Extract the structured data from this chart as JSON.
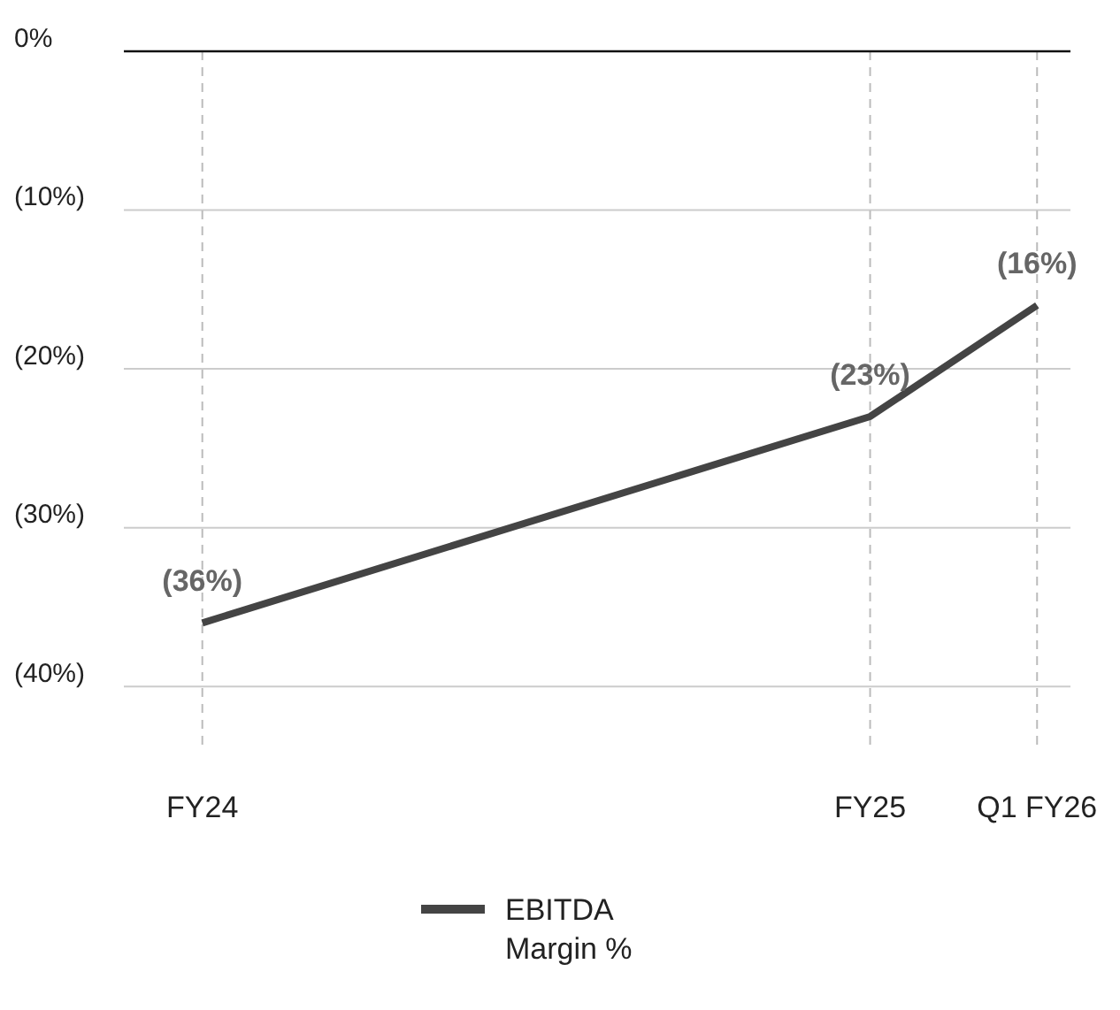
{
  "chart_data": {
    "type": "line",
    "categories": [
      "FY24",
      null,
      null,
      null,
      "FY25",
      "Q1 FY26"
    ],
    "series": [
      {
        "name": "EBITDA Margin %",
        "color": "#444444",
        "x": [
          "FY24",
          "FY25",
          "Q1 FY26"
        ],
        "values": [
          -36,
          -23,
          -16
        ],
        "value_labels": [
          "(36%)",
          "(23%)",
          "(16%)"
        ]
      }
    ],
    "ylim": [
      -44,
      0
    ],
    "yticks": [
      {
        "value": 0,
        "label": "0%"
      },
      {
        "value": -10,
        "label": "(10%)"
      },
      {
        "value": -20,
        "label": "(20%)"
      },
      {
        "value": -30,
        "label": "(30%)"
      },
      {
        "value": -40,
        "label": "(40%)"
      }
    ],
    "grid": true,
    "legend": "bottom",
    "marker": "none",
    "line_style": "solid"
  }
}
